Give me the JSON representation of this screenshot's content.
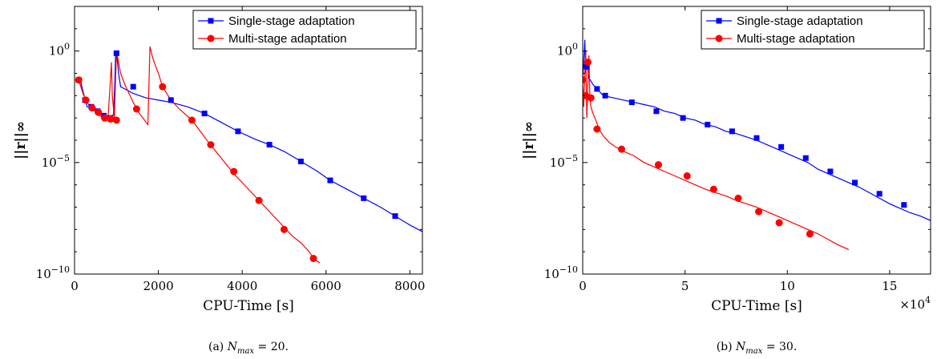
{
  "chart_data": [
    {
      "type": "line",
      "caption": {
        "prefix": "(a)",
        "symbol": "N",
        "subscript": "max",
        "suffix": " = 20."
      },
      "xlabel": "CPU-Time [s]",
      "ylabel": "||r||∞",
      "xlim": [
        0,
        8300
      ],
      "ylim_log10": [
        -10,
        2
      ],
      "y_scale": "log",
      "xticks": [
        0,
        2000,
        4000,
        6000,
        8000
      ],
      "xtick_labels": [
        "0",
        "2000",
        "4000",
        "6000",
        "8000"
      ],
      "yticks_log10": [
        -10,
        -5,
        0
      ],
      "ytick_labels": [
        {
          "base": "10",
          "exp": "−10"
        },
        {
          "base": "10",
          "exp": "−5"
        },
        {
          "base": "10",
          "exp": "0"
        }
      ],
      "x_multiplier": "",
      "legend_position": "top-right",
      "series": [
        {
          "name": "Single-stage adaptation",
          "color": "#0000ff",
          "marker": "square",
          "x": [
            100,
            150,
            200,
            300,
            400,
            500,
            600,
            700,
            750,
            800,
            850,
            900,
            930,
            960,
            980,
            1000,
            1050,
            1100,
            1200,
            1400,
            1700,
            2000,
            2300,
            2700,
            3100,
            3500,
            3900,
            4300,
            4650,
            5000,
            5400,
            5800,
            6100,
            6500,
            6900,
            7300,
            7650,
            8000,
            8300
          ],
          "y_log10": [
            -1.3,
            -1.4,
            -1.8,
            -2.5,
            -2.55,
            -2.6,
            -2.7,
            -2.9,
            -3.0,
            -3.0,
            -3.1,
            -3.0,
            -2.8,
            -1.5,
            -0.2,
            0.0,
            -1.0,
            -1.6,
            -1.7,
            -1.9,
            -2.1,
            -2.2,
            -2.3,
            -2.5,
            -2.8,
            -3.2,
            -3.6,
            -3.95,
            -4.2,
            -4.5,
            -4.95,
            -5.4,
            -5.8,
            -6.2,
            -6.6,
            -7.0,
            -7.4,
            -7.8,
            -8.1
          ],
          "marker_x": [
            100,
            250,
            400,
            550,
            700,
            850,
            1000,
            1400,
            2300,
            3100,
            3900,
            4650,
            5400,
            6100,
            6900,
            7650
          ],
          "marker_y_log10": [
            -1.3,
            -2.2,
            -2.5,
            -2.7,
            -2.9,
            -3.0,
            -0.1,
            -1.6,
            -2.2,
            -2.8,
            -3.6,
            -4.2,
            -4.95,
            -5.8,
            -6.6,
            -7.4
          ]
        },
        {
          "name": "Multi-stage adaptation",
          "color": "#ff0000",
          "marker": "circle",
          "x": [
            100,
            200,
            300,
            400,
            500,
            600,
            700,
            750,
            800,
            850,
            880,
            900,
            950,
            1000,
            1050,
            1100,
            1200,
            1400,
            1550,
            1750,
            1800,
            1850,
            1900,
            2000,
            2100,
            2300,
            2500,
            2800,
            3000,
            3200,
            3500,
            3800,
            4000,
            4200,
            4500,
            4800,
            5000,
            5200,
            5400,
            5600,
            5700,
            5850
          ],
          "y_log10": [
            -1.3,
            -1.9,
            -2.3,
            -2.6,
            -2.7,
            -2.9,
            -3.0,
            -3.05,
            -3.0,
            -1.5,
            -0.5,
            -2.0,
            -3.0,
            0.0,
            -0.5,
            -1.0,
            -1.5,
            -2.3,
            -2.8,
            -3.3,
            0.2,
            -0.2,
            -0.5,
            -1.0,
            -1.6,
            -2.2,
            -2.6,
            -3.1,
            -3.6,
            -4.1,
            -4.8,
            -5.5,
            -5.9,
            -6.3,
            -6.9,
            -7.5,
            -7.9,
            -8.3,
            -8.6,
            -9.0,
            -9.3,
            -9.5
          ],
          "marker_x": [
            100,
            270,
            420,
            570,
            720,
            860,
            1000,
            1480,
            2100,
            2800,
            3250,
            3800,
            4400,
            5000,
            5700
          ],
          "marker_y_log10": [
            -1.3,
            -2.2,
            -2.55,
            -2.75,
            -3.0,
            -3.05,
            -3.1,
            -2.6,
            -1.6,
            -3.1,
            -4.2,
            -5.4,
            -6.7,
            -8.0,
            -9.3
          ]
        }
      ]
    },
    {
      "type": "line",
      "caption": {
        "prefix": "(b)",
        "symbol": "N",
        "subscript": "max",
        "suffix": " = 30."
      },
      "xlabel": "CPU-Time [s]",
      "ylabel": "||r||∞",
      "xlim": [
        0,
        17
      ],
      "ylim_log10": [
        -10,
        2
      ],
      "y_scale": "log",
      "xticks": [
        0,
        5,
        10,
        15
      ],
      "xtick_labels": [
        "0",
        "5",
        "10",
        "15"
      ],
      "yticks_log10": [
        -10,
        -5,
        0
      ],
      "ytick_labels": [
        {
          "base": "10",
          "exp": "−10"
        },
        {
          "base": "10",
          "exp": "−5"
        },
        {
          "base": "10",
          "exp": "0"
        }
      ],
      "x_multiplier": {
        "base": "×10",
        "exp": "4"
      },
      "legend_position": "top-right",
      "series": [
        {
          "name": "Single-stage adaptation",
          "color": "#0000ff",
          "marker": "square",
          "x": [
            0.0,
            0.05,
            0.1,
            0.15,
            0.2,
            0.3,
            0.5,
            0.7,
            1.0,
            1.5,
            2.0,
            2.5,
            3.0,
            3.5,
            4.0,
            4.5,
            5.0,
            5.5,
            6.0,
            6.5,
            7.0,
            7.5,
            8.0,
            8.5,
            9.0,
            9.5,
            10.0,
            10.5,
            11.0,
            11.5,
            12.0,
            12.5,
            13.0,
            13.5,
            14.0,
            14.5,
            15.0,
            15.5,
            16.0,
            16.5,
            17.0
          ],
          "y_log10": [
            -1.3,
            -0.5,
            0.5,
            -1.0,
            -0.5,
            -1.2,
            -1.5,
            -1.7,
            -2.0,
            -2.1,
            -2.2,
            -2.3,
            -2.4,
            -2.5,
            -2.7,
            -2.8,
            -3.0,
            -3.1,
            -3.3,
            -3.4,
            -3.6,
            -3.7,
            -3.85,
            -4.0,
            -4.2,
            -4.4,
            -4.6,
            -4.8,
            -5.0,
            -5.3,
            -5.5,
            -5.7,
            -5.9,
            -6.1,
            -6.35,
            -6.6,
            -6.85,
            -7.05,
            -7.25,
            -7.4,
            -7.6
          ],
          "marker_x": [
            0.2,
            0.7,
            1.1,
            2.4,
            3.6,
            4.9,
            6.1,
            7.3,
            8.5,
            9.7,
            10.9,
            12.1,
            13.3,
            14.5,
            15.7
          ],
          "marker_y_log10": [
            -0.7,
            -1.7,
            -2.0,
            -2.3,
            -2.7,
            -3.0,
            -3.3,
            -3.6,
            -3.9,
            -4.3,
            -4.8,
            -5.4,
            -5.9,
            -6.4,
            -6.9
          ]
        },
        {
          "name": "Multi-stage adaptation",
          "color": "#ff0000",
          "marker": "circle",
          "x": [
            0.0,
            0.05,
            0.1,
            0.15,
            0.2,
            0.25,
            0.3,
            0.35,
            0.4,
            0.5,
            0.6,
            0.8,
            1.0,
            1.3,
            1.6,
            2.0,
            2.5,
            3.0,
            3.5,
            4.0,
            4.5,
            5.0,
            5.5,
            6.0,
            6.5,
            7.0,
            7.5,
            8.0,
            8.5,
            9.0,
            9.5,
            10.0,
            10.5,
            11.0,
            11.5,
            12.0,
            12.5,
            13.0
          ],
          "y_log10": [
            -1.5,
            -2.5,
            -1.0,
            0.0,
            -3.0,
            -1.5,
            -0.2,
            -2.0,
            -2.5,
            -2.8,
            -3.0,
            -3.5,
            -3.8,
            -4.1,
            -4.3,
            -4.5,
            -4.7,
            -5.0,
            -5.2,
            -5.4,
            -5.6,
            -5.8,
            -6.0,
            -6.2,
            -6.35,
            -6.5,
            -6.7,
            -6.85,
            -7.0,
            -7.2,
            -7.4,
            -7.6,
            -7.8,
            -8.0,
            -8.2,
            -8.45,
            -8.7,
            -8.9
          ],
          "marker_x": [
            0.0,
            0.15,
            0.25,
            0.4,
            0.7,
            1.9,
            3.7,
            5.1,
            6.4,
            7.6,
            8.6,
            9.6,
            11.1
          ],
          "marker_y_log10": [
            -1.3,
            -2.0,
            -0.5,
            -2.1,
            -3.5,
            -4.4,
            -5.1,
            -5.6,
            -6.2,
            -6.6,
            -7.2,
            -7.7,
            -8.2
          ]
        }
      ]
    }
  ]
}
